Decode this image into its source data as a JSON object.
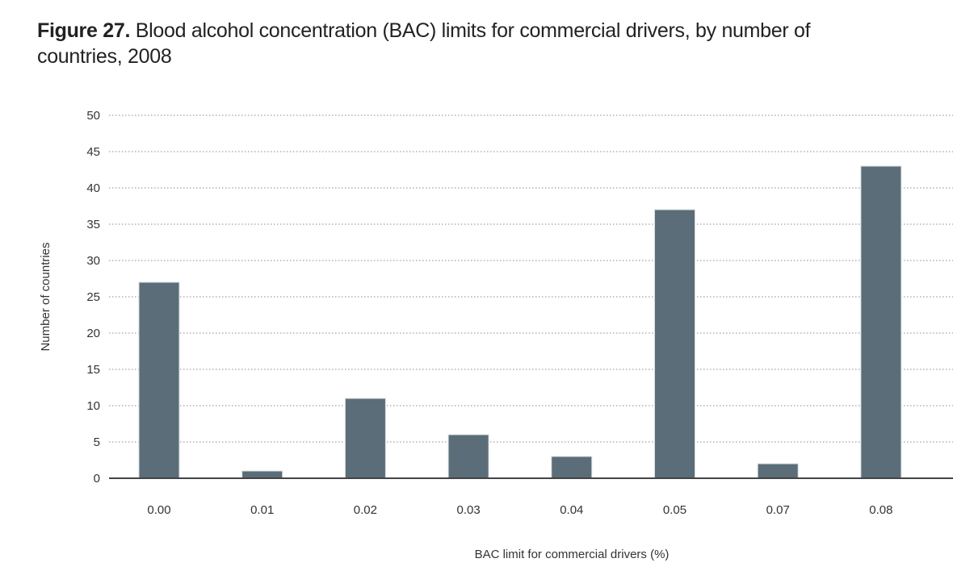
{
  "figure": {
    "number": "Figure 27.",
    "title_line1": "Blood alcohol concentration (BAC) limits for commercial drivers, by number of",
    "title_line2": "countries, 2008"
  },
  "chart_data": {
    "type": "bar",
    "categories": [
      "0.00",
      "0.01",
      "0.02",
      "0.03",
      "0.04",
      "0.05",
      "0.07",
      "0.08"
    ],
    "values": [
      27,
      1,
      11,
      6,
      3,
      37,
      2,
      43
    ],
    "xlabel": "BAC limit for commercial drivers (%)",
    "ylabel": "Number of countries",
    "ylim": [
      0,
      50
    ],
    "yticks": [
      0,
      5,
      10,
      15,
      20,
      25,
      30,
      35,
      40,
      45,
      50
    ],
    "grid": true,
    "bar_color": "#5a6d78"
  }
}
